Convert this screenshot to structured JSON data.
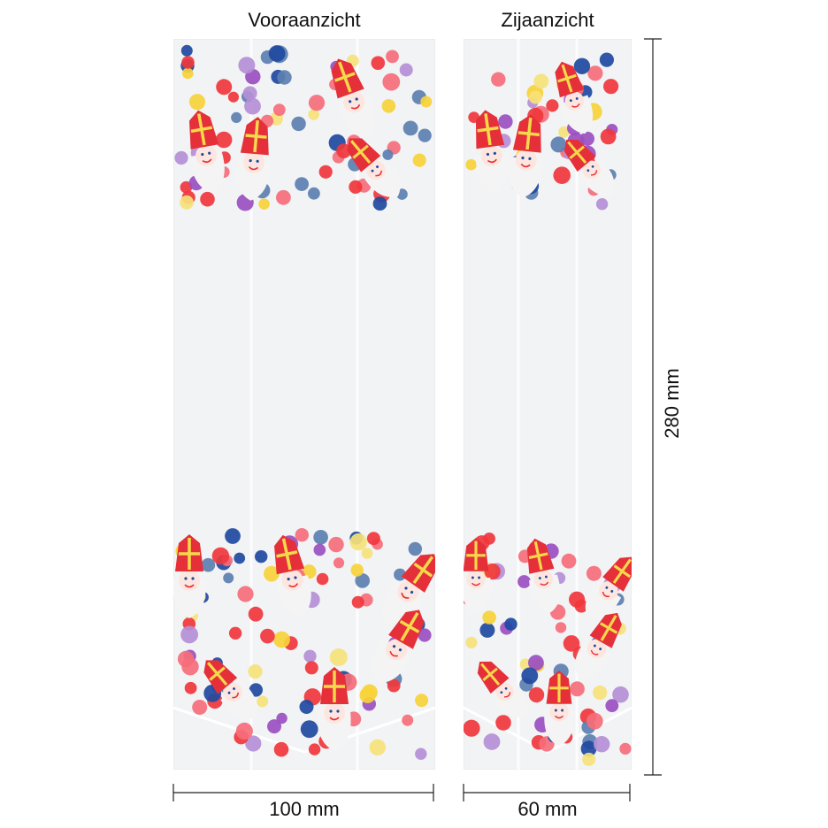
{
  "front_view": {
    "title": "Vooraanzicht",
    "width_label": "100 mm"
  },
  "side_view": {
    "title": "Zijaanzicht",
    "width_label": "60 mm"
  },
  "height_label": "280 mm",
  "colors": {
    "red": "#f0373c",
    "pink": "#f56e7a",
    "blue": "#1f4aa0",
    "steel_blue": "#5c7fb0",
    "purple": "#9a4fc0",
    "lilac": "#b58fd6",
    "yellow": "#f7d33a",
    "pale_yellow": "#f6e27a",
    "mitre_red": "#e5303a",
    "mitre_cross": "#f5d94a",
    "beard": "#f4f4f4",
    "film": "#f2f3f5"
  }
}
